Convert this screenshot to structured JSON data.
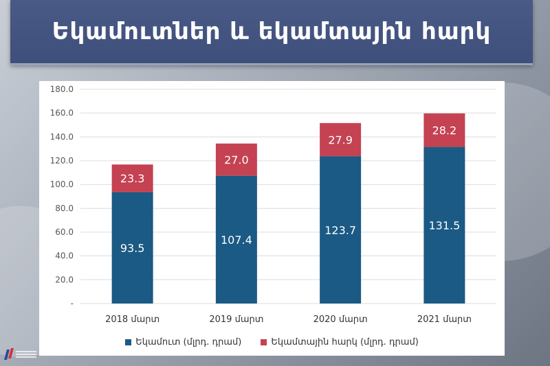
{
  "header": {
    "title": "Եկամուտներ և եկամտային հարկ"
  },
  "colors": {
    "income": "#1b5a84",
    "tax": "#c44252",
    "title_bg": "#445480"
  },
  "chart_data": {
    "type": "bar",
    "stacked": true,
    "categories": [
      "2018 մարտ",
      "2019 մարտ",
      "2020 մարտ",
      "2021 մարտ"
    ],
    "series": [
      {
        "name": "Եկամուտ (մլրդ. դրամ)",
        "values": [
          93.5,
          107.4,
          123.7,
          131.5
        ],
        "color": "#1b5a84"
      },
      {
        "name": "Եկամտային հարկ (մլրդ. դրամ)",
        "values": [
          23.3,
          27.0,
          27.9,
          28.2
        ],
        "color": "#c44252"
      }
    ],
    "y_ticks": [
      "-",
      "20.0",
      "40.0",
      "60.0",
      "80.0",
      "100.0",
      "120.0",
      "140.0",
      "160.0",
      "180.0"
    ],
    "ylim": [
      0,
      180
    ],
    "grid": true,
    "legend_position": "bottom"
  }
}
